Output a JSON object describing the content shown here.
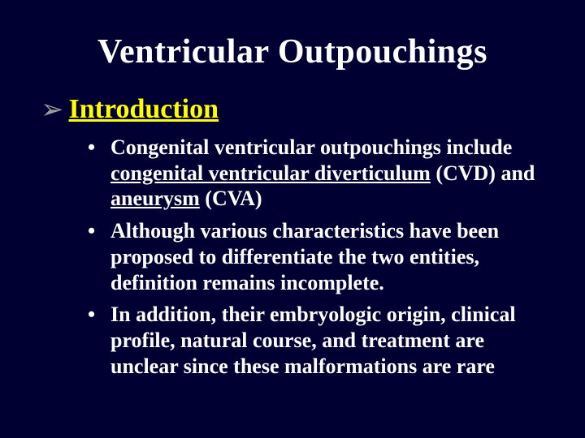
{
  "colors": {
    "background": "#000033",
    "title": "#ffffff",
    "heading": "#ffff00",
    "chevron": "#9d9d9d",
    "body_text": "#ffffff"
  },
  "typography": {
    "family": "Times New Roman",
    "title_size_pt": 42,
    "heading_size_pt": 34,
    "body_size_pt": 26,
    "body_weight": "bold"
  },
  "title": "Ventricular Outpouchings",
  "section": {
    "bullet_glyph": "➢",
    "heading": "Introduction"
  },
  "bullets": [
    {
      "pre": "Congenital ventricular outpouchings include ",
      "u1": "congenital ventricular diverticulum",
      "mid": " (CVD) and ",
      "u2": "aneurysm",
      "post": " (CVA)"
    },
    {
      "pre": "Although various characteristics have been proposed to differentiate the two entities, definition remains incomplete.",
      "u1": "",
      "mid": "",
      "u2": "",
      "post": ""
    },
    {
      "pre": "In addition, their embryologic origin, clinical profile, natural course, and treatment are unclear since these malformations are rare",
      "u1": "",
      "mid": "",
      "u2": "",
      "post": ""
    }
  ]
}
